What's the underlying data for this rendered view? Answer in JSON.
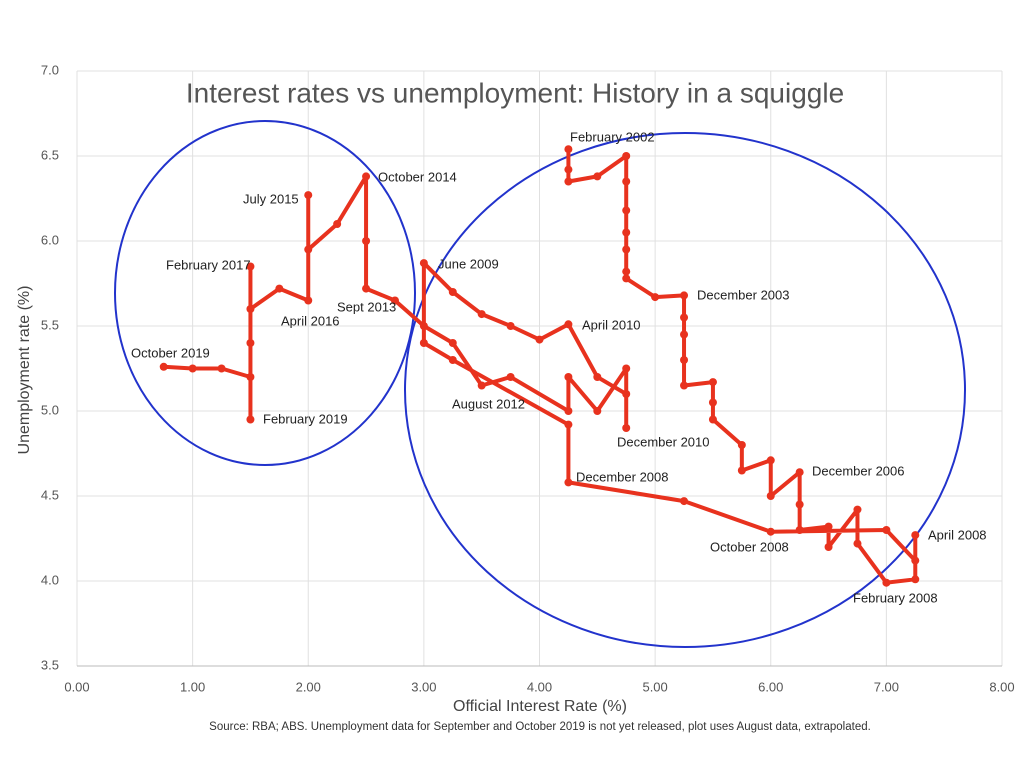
{
  "chart_data": {
    "type": "line",
    "title": "Interest rates vs unemployment: History in a squiggle",
    "x_label": "Official Interest Rate (%)",
    "y_label": "Unemployment rate (%)",
    "source": "Source: RBA; ABS. Unemployment data for September and October 2019 is not yet released, plot uses August data, extrapolated.",
    "xlim": [
      0,
      8
    ],
    "ylim": [
      3.5,
      7.0
    ],
    "xticks": [
      {
        "value": 0,
        "label": "0.00"
      },
      {
        "value": 1,
        "label": "1.00"
      },
      {
        "value": 2,
        "label": "2.00"
      },
      {
        "value": 3,
        "label": "3.00"
      },
      {
        "value": 4,
        "label": "4.00"
      },
      {
        "value": 5,
        "label": "5.00"
      },
      {
        "value": 6,
        "label": "6.00"
      },
      {
        "value": 7,
        "label": "7.00"
      },
      {
        "value": 8,
        "label": "8.00"
      }
    ],
    "yticks": [
      3.5,
      {
        "value": 4,
        "label": "4.0"
      },
      4.5,
      {
        "value": 5,
        "label": "5.0"
      },
      5.5,
      {
        "value": 6,
        "label": "6.0"
      },
      6.5,
      {
        "value": 7,
        "label": "7.0"
      }
    ],
    "grid": true,
    "series": [
      {
        "color": "#e8321e",
        "x": [
          4.25,
          4.25,
          4.25,
          4.5,
          4.75,
          4.75,
          4.75,
          4.75,
          4.75,
          4.75,
          4.75,
          5.0,
          5.25,
          5.25,
          5.25,
          5.25,
          5.25,
          5.5,
          5.5,
          5.5,
          5.75,
          5.75,
          6.0,
          6.0,
          6.25,
          6.25,
          6.25,
          6.5,
          6.5,
          6.75,
          6.75,
          7.0,
          7.25,
          7.25,
          7.25,
          7.0,
          6.0,
          5.25,
          4.25,
          4.25,
          3.25,
          3.0,
          3.0,
          3.25,
          3.5,
          3.75,
          4.0,
          4.25,
          4.5,
          4.75,
          4.75,
          4.75,
          4.5,
          4.25,
          4.25,
          3.75,
          3.5,
          3.25,
          3.0,
          2.75,
          2.5,
          2.5,
          2.5,
          2.25,
          2.0,
          2.0,
          2.0,
          1.75,
          1.5,
          1.5,
          1.5,
          1.5,
          1.5,
          1.25,
          1.0,
          0.75
        ],
        "values": [
          6.54,
          6.42,
          6.35,
          6.38,
          6.5,
          6.35,
          6.18,
          6.05,
          5.95,
          5.82,
          5.78,
          5.67,
          5.68,
          5.55,
          5.45,
          5.3,
          5.15,
          5.17,
          5.05,
          4.95,
          4.8,
          4.65,
          4.71,
          4.5,
          4.64,
          4.45,
          4.3,
          4.32,
          4.2,
          4.42,
          4.22,
          3.99,
          4.01,
          4.27,
          4.12,
          4.3,
          4.29,
          4.47,
          4.58,
          4.92,
          5.3,
          5.4,
          5.87,
          5.7,
          5.57,
          5.5,
          5.42,
          5.51,
          5.2,
          5.1,
          4.9,
          5.25,
          5.0,
          5.2,
          5.0,
          5.2,
          5.15,
          5.4,
          5.5,
          5.65,
          5.72,
          6.0,
          6.38,
          6.1,
          5.95,
          6.27,
          5.65,
          5.72,
          5.6,
          5.85,
          5.4,
          4.95,
          5.2,
          5.25,
          5.25,
          5.26
        ]
      }
    ],
    "annotations": [
      "February 2002",
      "October 2014",
      "July 2015",
      "February 2017",
      "June 2009",
      "December 2003",
      "Sept 2013",
      "April 2016",
      "April 2010",
      "October 2019",
      "August 2012",
      "February 2019",
      "December 2010",
      "December 2006",
      "December 2008",
      "April 2008",
      "October 2008",
      "February 2008"
    ]
  }
}
